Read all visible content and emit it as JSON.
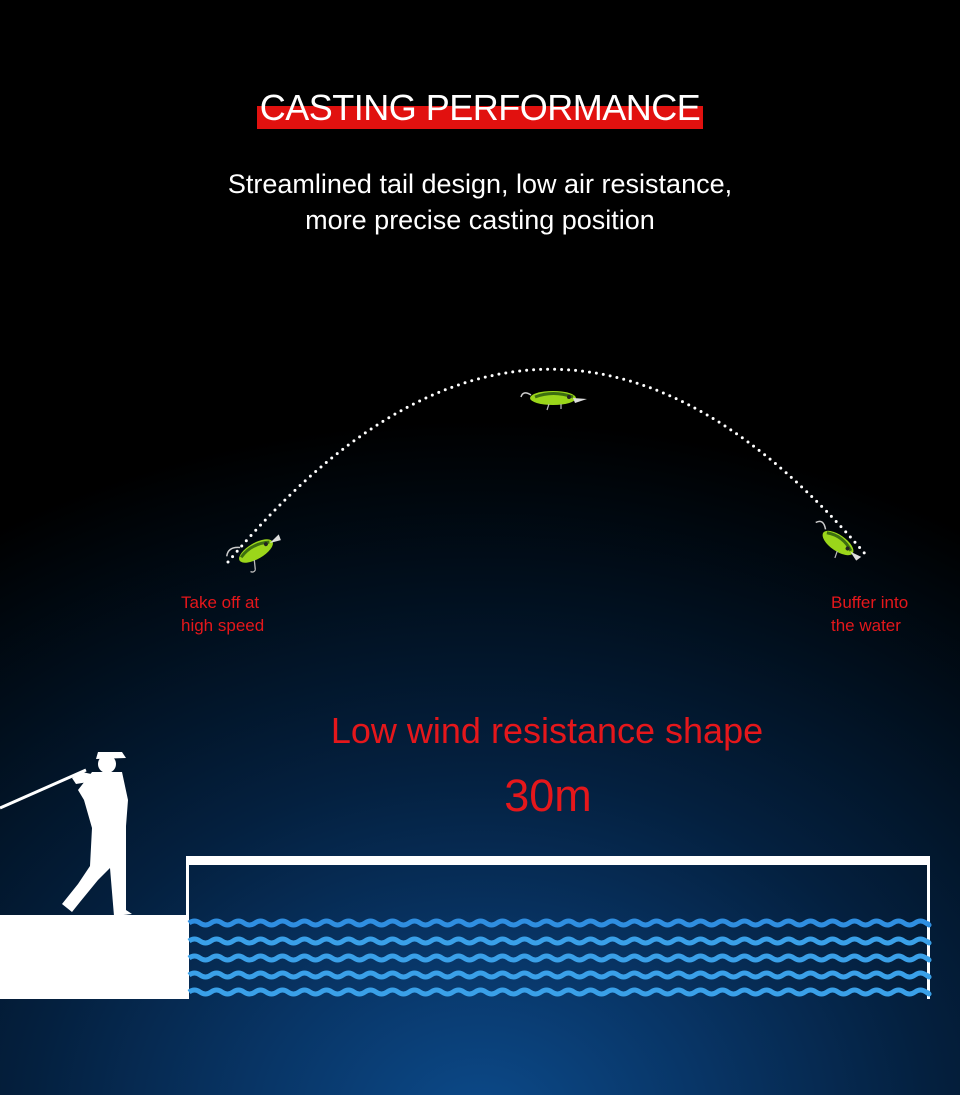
{
  "heading": {
    "title": "CASTING PERFORMANCE"
  },
  "intro": {
    "line1": "Streamlined tail design, low air resistance,",
    "line2": "more precise casting position"
  },
  "trajectory": {
    "start_label_line1": "Take off at",
    "start_label_line2": "high speed",
    "end_label_line1": "Buffer into",
    "end_label_line2": "the water"
  },
  "feature": {
    "text": "Low wind resistance shape"
  },
  "distance": {
    "value": "30m"
  },
  "colors": {
    "accent_red": "#e5171b",
    "title_bar_red": "#e1110f",
    "water_blue": "#3aa0e8",
    "background_dark": "#01101f"
  }
}
